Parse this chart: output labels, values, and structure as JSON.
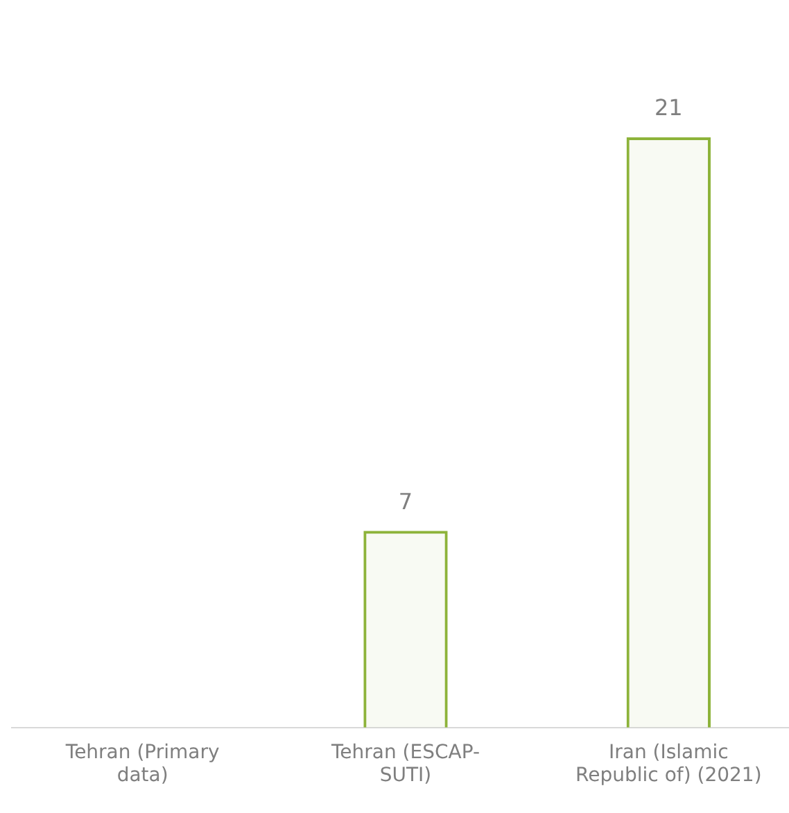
{
  "chart_data": {
    "type": "bar",
    "categories": [
      "Tehran (Primary data)",
      "Tehran (ESCAP-SUTI)",
      "Iran (Islamic Republic of) (2021)"
    ],
    "values": [
      null,
      7,
      21
    ],
    "color": "#8db33a",
    "data_labels": true,
    "grid": false,
    "legend": false,
    "tick_labels": "x"
  }
}
